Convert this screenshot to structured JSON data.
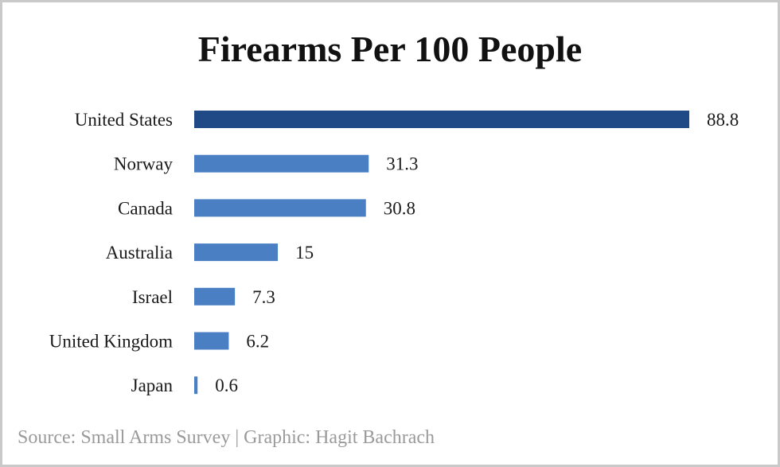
{
  "chart_data": {
    "type": "bar",
    "orientation": "horizontal",
    "title": "Firearms Per 100 People",
    "categories": [
      "United States",
      "Norway",
      "Canada",
      "Australia",
      "Israel",
      "United Kingdom",
      "Japan"
    ],
    "values": [
      88.8,
      31.3,
      30.8,
      15,
      7.3,
      6.2,
      0.6
    ],
    "value_labels": [
      "88.8",
      "31.3",
      "30.8",
      "15",
      "7.3",
      "6.2",
      "0.6"
    ],
    "xlim": [
      0,
      88.8
    ],
    "grid": false,
    "legend": "none",
    "colors": {
      "highlight": "#1f4a85",
      "bar": "#4a7fc4"
    }
  },
  "footer": {
    "source": "Source: Small Arms Survey | Graphic: Hagit Bachrach"
  }
}
